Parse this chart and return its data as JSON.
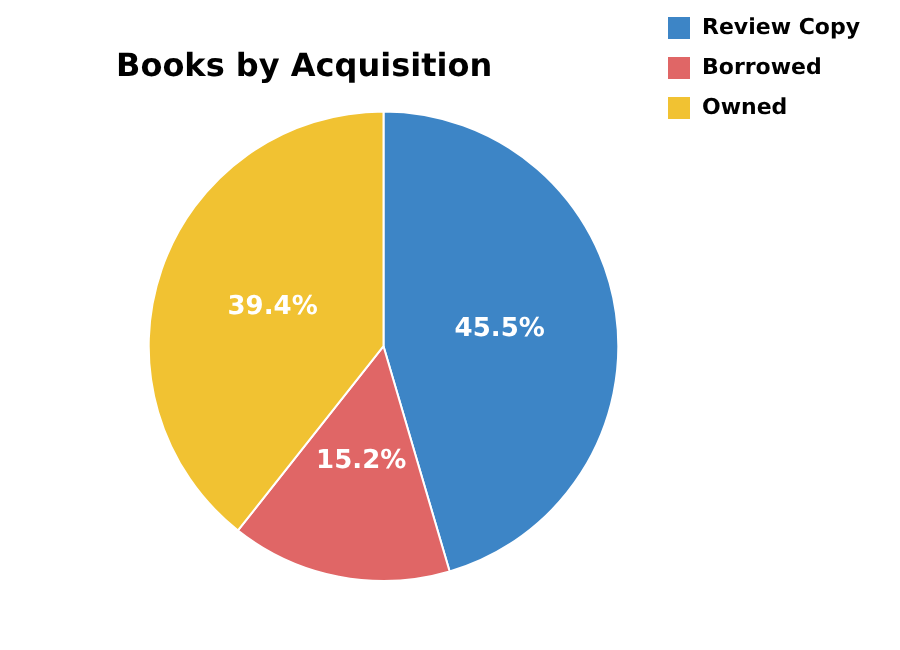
{
  "chart_data": {
    "type": "pie",
    "title": "Books by Acquisition",
    "categories": [
      "Review Copy",
      "Borrowed",
      "Owned"
    ],
    "values": [
      45.5,
      15.2,
      39.4
    ],
    "colors": [
      "#3d85c6",
      "#e06666",
      "#f1c232"
    ],
    "value_labels": [
      "45.5%",
      "15.2%",
      "39.4%"
    ],
    "legend": "top right"
  }
}
